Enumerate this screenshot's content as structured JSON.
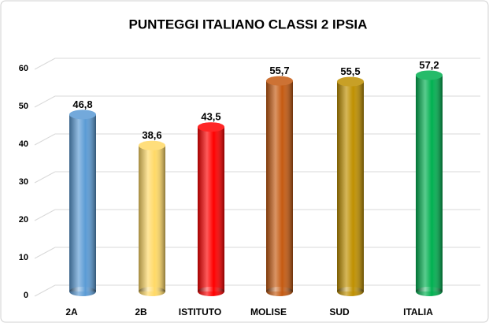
{
  "chart_data": {
    "type": "bar",
    "title": "PUNTEGGI  ITALIANO  CLASSI 2 IPSIA",
    "categories": [
      "2A",
      "2B",
      "ISTITUTO",
      "MOLISE",
      "SUD",
      "ITALIA"
    ],
    "values": [
      46.8,
      38.6,
      43.5,
      55.7,
      55.5,
      57.2
    ],
    "value_labels": [
      "46,8",
      "38,6",
      "43,5",
      "55,7",
      "55,5",
      "57,2"
    ],
    "colors": [
      "#5b9bd5",
      "#ffd966",
      "#ff0000",
      "#c55a11",
      "#bf9000",
      "#00b050"
    ],
    "ylim": [
      0,
      60
    ],
    "yticks": [
      0,
      10,
      20,
      30,
      40,
      50,
      60
    ],
    "grid": true
  }
}
